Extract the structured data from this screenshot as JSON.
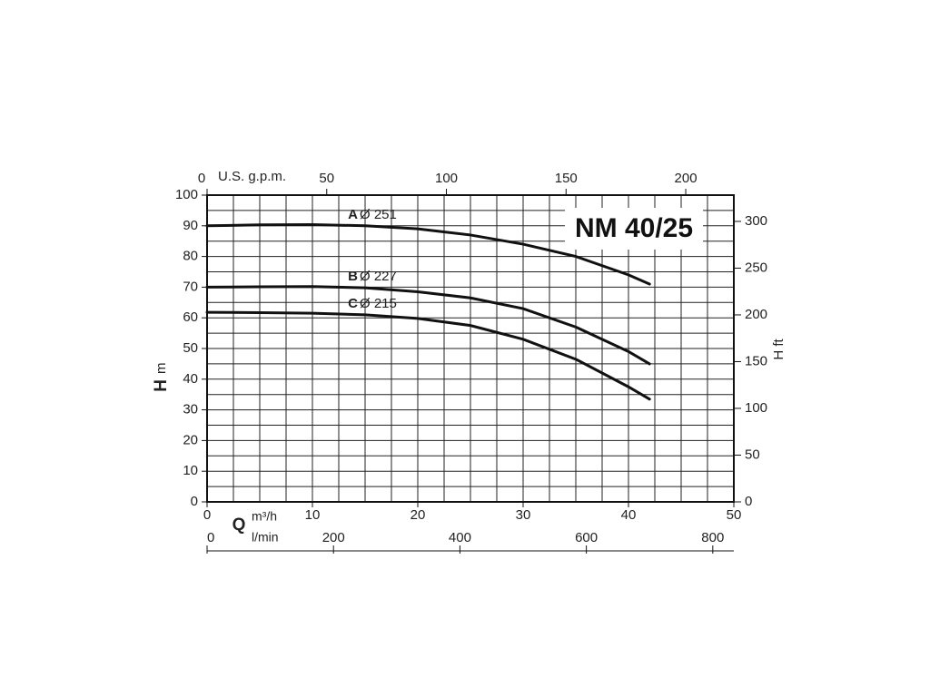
{
  "chart_data": {
    "type": "line",
    "title": "NM 40/25",
    "x": [
      0,
      5,
      10,
      15,
      20,
      25,
      30,
      35,
      40,
      42
    ],
    "series": [
      {
        "name": "A",
        "label": "Ø 251",
        "color": "#111111",
        "values": [
          90,
          90.3,
          90.4,
          90,
          89,
          87,
          84,
          80,
          74,
          71
        ]
      },
      {
        "name": "B",
        "label": "Ø 227",
        "color": "#111111",
        "values": [
          70,
          70.1,
          70.2,
          69.8,
          68.5,
          66.5,
          63,
          57,
          49,
          45
        ]
      },
      {
        "name": "C",
        "label": "Ø 215",
        "color": "#111111",
        "values": [
          61.8,
          61.7,
          61.5,
          61,
          59.8,
          57.5,
          53,
          46.5,
          37.5,
          33.5
        ]
      }
    ],
    "x_label": "Q",
    "x_unit": "m³/h",
    "xlim": [
      0,
      50
    ],
    "xticks": [
      0,
      10,
      20,
      30,
      40,
      50
    ],
    "x2_unit": "l/min",
    "x2lim": [
      0,
      833.3
    ],
    "x2ticks": [
      0,
      200,
      400,
      600,
      800
    ],
    "x3_unit": "U.S. g.p.m.",
    "x3lim": [
      0,
      220.1
    ],
    "x3ticks": [
      0,
      50,
      100,
      150,
      200
    ],
    "y_label": "H",
    "y_unit": "m",
    "ylim": [
      0,
      100
    ],
    "yticks": [
      0,
      10,
      20,
      30,
      40,
      50,
      60,
      70,
      80,
      90,
      100
    ],
    "y2_label": "H ft",
    "y2lim": [
      0,
      328.1
    ],
    "y2ticks": [
      0,
      50,
      100,
      150,
      200,
      250,
      300
    ],
    "grid": true
  }
}
